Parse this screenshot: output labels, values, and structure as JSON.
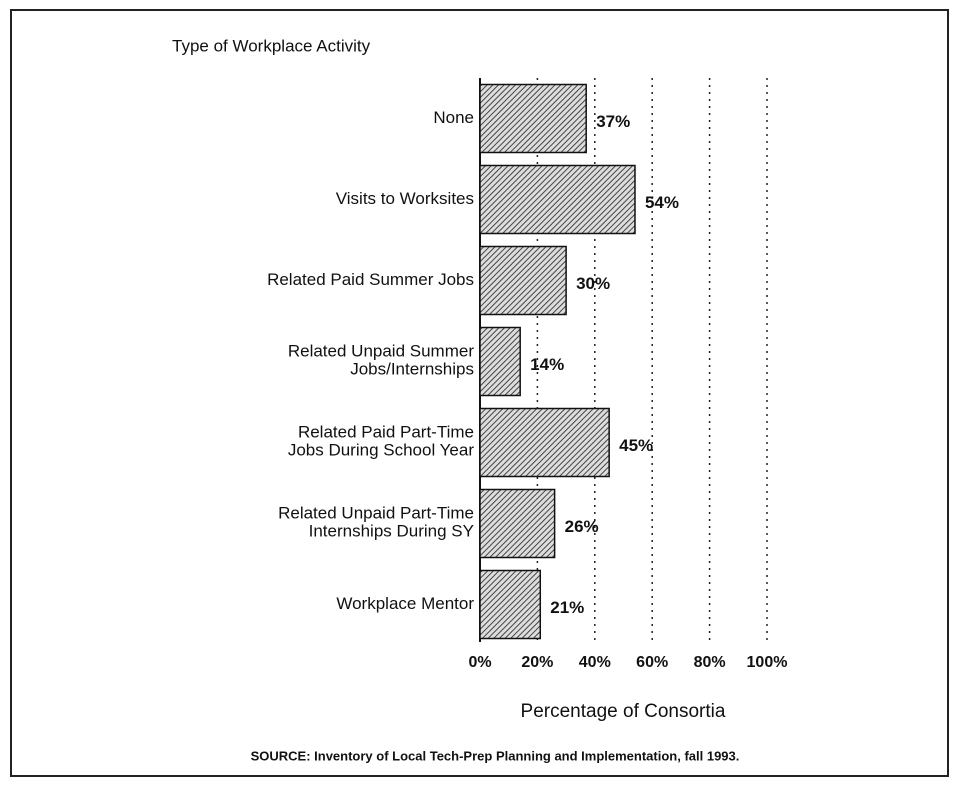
{
  "chart_data": {
    "type": "barh",
    "title": "Type of Workplace Activity",
    "xlabel": "Percentage of Consortia",
    "source": "SOURCE:  Inventory of Local Tech-Prep Planning and Implementation, fall 1993.",
    "categories": [
      "None",
      "Visits to Worksites",
      "Related Paid Summer Jobs",
      "Related Unpaid Summer\nJobs/Internships",
      "Related Paid Part-Time\nJobs During School Year",
      "Related Unpaid Part-Time\nInternships During SY",
      "Workplace Mentor"
    ],
    "values": [
      37,
      54,
      30,
      14,
      45,
      26,
      21
    ],
    "value_labels": [
      "37%",
      "54%",
      "30%",
      "14%",
      "45%",
      "26%",
      "21%"
    ],
    "color": "#444",
    "xlim": [
      0,
      100
    ],
    "xticks": [
      {
        "value": 0,
        "label": "0%"
      },
      {
        "value": 20,
        "label": "20%"
      },
      {
        "value": 40,
        "label": "40%"
      },
      {
        "value": 60,
        "label": "60%"
      },
      {
        "value": 80,
        "label": "80%"
      },
      {
        "value": 100,
        "label": "100%"
      }
    ],
    "grid": true
  }
}
